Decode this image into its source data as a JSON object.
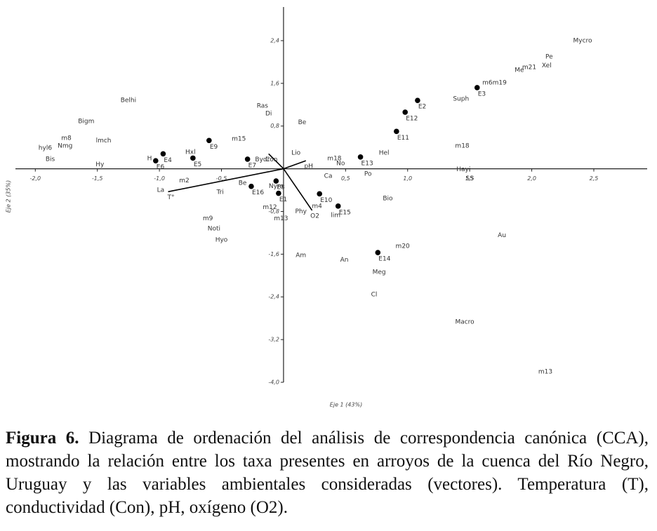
{
  "chart_data": {
    "type": "scatter",
    "x_label": "Eje 1 (43%)",
    "y_label": "Eje 2 (35%)",
    "xlim": [
      -2.16,
      2.93
    ],
    "ylim": [
      -4.0,
      3.03
    ],
    "xticks": [
      {
        "value": -2,
        "label": "-2,0"
      },
      {
        "value": -1.5,
        "label": "-1,5"
      },
      {
        "value": -1,
        "label": "-1,0"
      },
      {
        "value": -0.5,
        "label": "-0,5"
      },
      {
        "value": 0.5,
        "label": "0,5"
      },
      {
        "value": 1,
        "label": "1,0"
      },
      {
        "value": 1.5,
        "label": "1,5"
      },
      {
        "value": 2,
        "label": "2,0"
      },
      {
        "value": 2.5,
        "label": "2,5"
      }
    ],
    "yticks": [
      {
        "value": 2.4,
        "label": "2,4"
      },
      {
        "value": 1.6,
        "label": "1,6"
      },
      {
        "value": 0.8,
        "label": "0,8"
      },
      {
        "value": -0.8,
        "label": "-0,8"
      },
      {
        "value": -1.6,
        "label": "-1,6"
      },
      {
        "value": -2.4,
        "label": "-2,4"
      },
      {
        "value": -3.2,
        "label": "-3,2"
      },
      {
        "value": -4,
        "label": "-4,0"
      }
    ],
    "color": "#000000",
    "sites": {
      "labels": [
        "E3",
        "E2",
        "E12",
        "E11",
        "E13",
        "E9",
        "E4",
        "E5",
        "E6",
        "E7",
        "E16",
        "E8",
        "E1",
        "E10",
        "E15",
        "E14"
      ],
      "x": [
        1.56,
        1.08,
        0.98,
        0.91,
        0.62,
        -0.6,
        -0.97,
        -0.73,
        -1.03,
        -0.29,
        -0.26,
        -0.06,
        -0.04,
        0.29,
        0.44,
        0.76
      ],
      "y": [
        1.52,
        1.28,
        1.06,
        0.7,
        0.22,
        0.53,
        0.28,
        0.2,
        0.15,
        0.18,
        -0.33,
        -0.23,
        -0.46,
        -0.47,
        -0.7,
        -1.57
      ]
    },
    "taxa": {
      "labels": [
        "Mycro",
        "Pe",
        "Xel",
        "Me",
        "m21",
        "m6m19",
        "Suph",
        "m18",
        "Hayi",
        "SS",
        "Hel",
        "m18",
        "No",
        "Ca",
        "Po",
        "Bio",
        "m20",
        "Meg",
        "An",
        "Am",
        "Cl",
        "Au",
        "Macro",
        "m13",
        "Lio",
        "Be",
        "Di",
        "Ras",
        "Belhi",
        "Bigm",
        "m8",
        "hyl6",
        "Nmg",
        "Bis",
        "lmch",
        "Hy",
        "H",
        "Hxl",
        "m15",
        "Bydr",
        "Be",
        "Tri",
        "m2",
        "La",
        "m9",
        "Noti",
        "Hyo",
        "m12",
        "m13",
        "m4",
        "Phy",
        "lim",
        "Nym"
      ],
      "x": [
        2.41,
        2.14,
        2.12,
        1.9,
        1.98,
        1.7,
        1.43,
        1.44,
        1.45,
        1.5,
        0.81,
        0.41,
        0.46,
        0.36,
        0.68,
        0.84,
        0.96,
        0.77,
        0.49,
        0.14,
        0.73,
        1.76,
        1.46,
        2.11,
        0.1,
        0.15,
        -0.12,
        -0.17,
        -1.25,
        -1.59,
        -1.75,
        -1.92,
        -1.76,
        -1.88,
        -1.45,
        -1.48,
        -1.08,
        -0.75,
        -0.36,
        -0.17,
        -0.33,
        -0.51,
        -0.8,
        -0.99,
        -0.61,
        -0.56,
        -0.5,
        -0.11,
        -0.02,
        0.27,
        0.14,
        0.42,
        -0.06
      ],
      "y": [
        2.4,
        2.1,
        1.93,
        1.85,
        1.9,
        1.61,
        1.31,
        0.43,
        -0.01,
        -0.18,
        0.3,
        0.19,
        0.1,
        -0.14,
        -0.1,
        -0.56,
        -1.45,
        -1.94,
        -1.71,
        -1.62,
        -2.36,
        -1.25,
        -2.87,
        -3.8,
        0.3,
        0.87,
        1.03,
        1.18,
        1.28,
        0.89,
        0.57,
        0.39,
        0.43,
        0.18,
        0.53,
        0.08,
        0.19,
        0.31,
        0.56,
        0.17,
        -0.27,
        -0.44,
        -0.22,
        -0.4,
        -0.93,
        -1.12,
        -1.33,
        -0.72,
        -0.93,
        -0.7,
        -0.8,
        -0.87,
        -0.33
      ]
    },
    "vectors": {
      "labels": [
        "T°",
        "Con",
        "pH",
        "O2"
      ],
      "x": [
        -0.93,
        -0.12,
        0.18,
        0.23
      ],
      "y": [
        -0.43,
        0.28,
        0.15,
        -0.78
      ]
    }
  },
  "caption": {
    "label": "Figura 6.",
    "text": "Diagrama de ordenación del análisis de correspondencia canónica (CCA), mostrando la relación entre los taxa presentes en arroyos de la cuenca del Río Negro, Uruguay y las variables ambientales consideradas (vectores). Temperatura (T), conductividad (Con), pH, oxígeno (O2)."
  }
}
